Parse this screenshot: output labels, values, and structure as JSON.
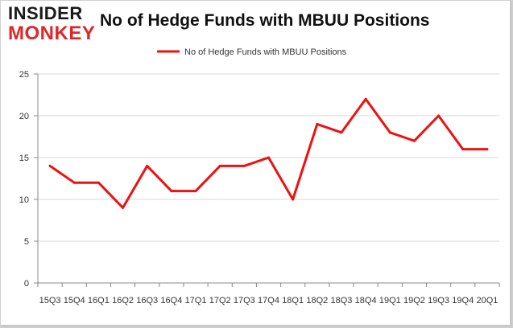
{
  "logo": {
    "line1": "INSIDER",
    "line2": "MONKEY"
  },
  "chart_data": {
    "type": "line",
    "title": "No of Hedge Funds with MBUU Positions",
    "xlabel": "",
    "ylabel": "",
    "categories": [
      "15Q3",
      "15Q4",
      "16Q1",
      "16Q2",
      "16Q3",
      "16Q4",
      "17Q1",
      "17Q2",
      "17Q3",
      "17Q4",
      "18Q1",
      "18Q2",
      "18Q3",
      "18Q4",
      "19Q1",
      "19Q2",
      "19Q3",
      "19Q4",
      "20Q1"
    ],
    "series": [
      {
        "name": "No of Hedge Funds with MBUU Positions",
        "values": [
          14,
          12,
          12,
          9,
          14,
          11,
          11,
          14,
          14,
          15,
          10,
          19,
          18,
          22,
          18,
          17,
          20,
          16,
          16
        ],
        "color": "#ee1111"
      }
    ],
    "ylim": [
      0,
      25
    ],
    "yticks": [
      0,
      5,
      10,
      15,
      20,
      25
    ],
    "grid": true,
    "legend": "top-center"
  }
}
